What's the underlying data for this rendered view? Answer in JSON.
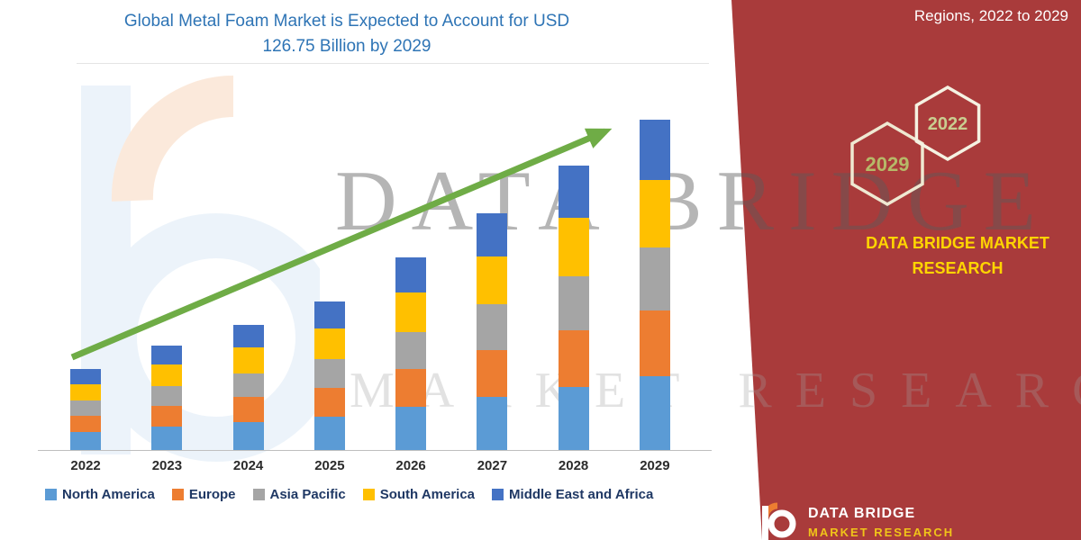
{
  "header": {
    "title_lines": [
      "Global Metal Foam Market is Expected to Account for USD",
      "126.75 Billion by 2029"
    ]
  },
  "side_panel": {
    "heading": "Regions, 2022 to 2029",
    "hexagons": [
      {
        "year": "2029"
      },
      {
        "year": "2022"
      }
    ],
    "brand_lines": [
      "DATA BRIDGE MARKET",
      "RESEARCH"
    ]
  },
  "watermark": {
    "line1": "DATA BRIDGE",
    "line2": "MARKET RESEARCH"
  },
  "footer_logo": {
    "title": "DATA BRIDGE",
    "subtitle": "MARKET RESEARCH"
  },
  "colors": {
    "accent_red": "#A93B3B",
    "title_blue": "#2E74B5",
    "arrow_green": "#6FAC46",
    "brand_yellow": "#FFD500"
  },
  "chart_data": {
    "type": "bar",
    "stacked": true,
    "title": "Global Metal Foam Market is Expected to Account for USD 126.75 Billion by 2029",
    "xlabel": "",
    "ylabel": "",
    "values_unit": "USD Billion",
    "legend_position": "bottom",
    "grid": false,
    "categories": [
      "2022",
      "2023",
      "2024",
      "2025",
      "2026",
      "2027",
      "2028",
      "2029"
    ],
    "series": [
      {
        "name": "North America",
        "color": "#5B9BD5",
        "values": [
          7.0,
          9.0,
          10.7,
          12.7,
          16.5,
          20.3,
          24.3,
          28.3
        ]
      },
      {
        "name": "Europe",
        "color": "#ED7D31",
        "values": [
          6.2,
          8.0,
          9.6,
          11.3,
          14.7,
          18.1,
          21.7,
          25.2
        ]
      },
      {
        "name": "Asia Pacific",
        "color": "#A5A5A5",
        "values": [
          5.9,
          7.6,
          9.2,
          10.9,
          14.1,
          17.4,
          20.8,
          24.2
        ]
      },
      {
        "name": "South America",
        "color": "#FFC000",
        "values": [
          6.3,
          8.2,
          9.8,
          11.6,
          15.1,
          18.6,
          22.2,
          25.9
        ]
      },
      {
        "name": "Middle East and Africa",
        "color": "#4472C4",
        "values": [
          5.6,
          7.2,
          8.7,
          10.5,
          13.6,
          16.6,
          20.0,
          23.15
        ]
      }
    ],
    "totals": [
      31,
      40,
      48,
      57,
      74,
      91,
      109,
      126.75
    ],
    "total_2029": 126.75
  }
}
